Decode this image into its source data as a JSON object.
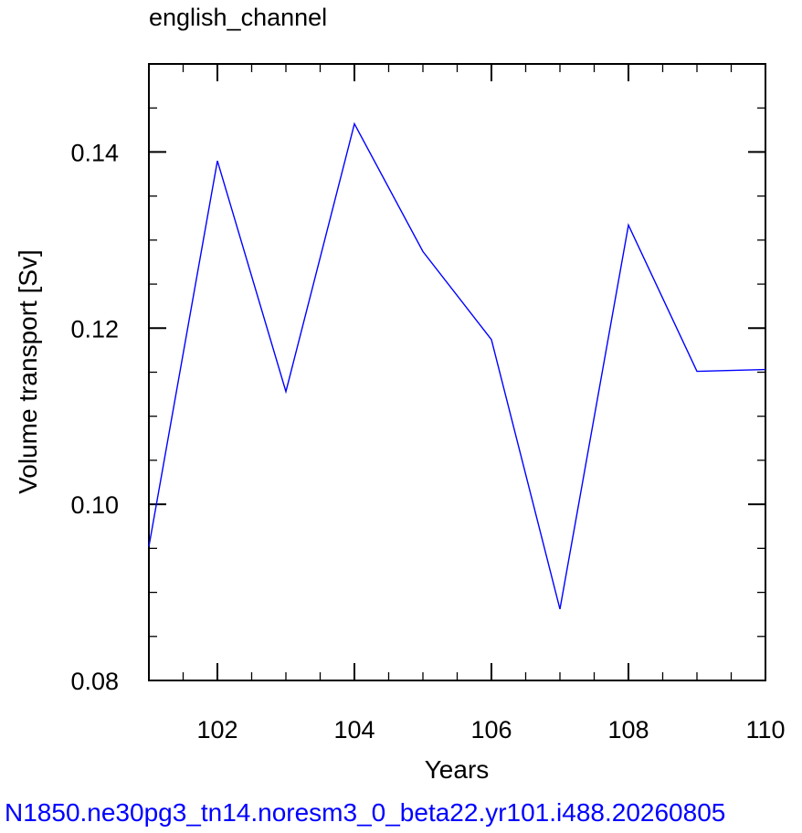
{
  "chart_data": {
    "type": "line",
    "title": "english_channel",
    "xlabel": "Years",
    "ylabel": "Volume transport [Sv]",
    "xlim": [
      101,
      110
    ],
    "ylim": [
      0.08,
      0.15
    ],
    "x_ticks": [
      102,
      104,
      106,
      108,
      110
    ],
    "x_tick_labels": [
      "102",
      "104",
      "106",
      "108",
      "110"
    ],
    "y_ticks": [
      0.08,
      0.1,
      0.12,
      0.14
    ],
    "y_tick_labels": [
      "0.08",
      "0.10",
      "0.12",
      "0.14"
    ],
    "grid": false,
    "series": [
      {
        "color": "#0000ff",
        "x": [
          101,
          102,
          103,
          104,
          105,
          106,
          107,
          108,
          109,
          110
        ],
        "values": [
          0.0952,
          0.139,
          0.1128,
          0.1432,
          0.1287,
          0.1187,
          0.0881,
          0.1317,
          0.1151,
          0.1153
        ]
      }
    ],
    "footer": "N1850.ne30pg3_tn14.noresm3_0_beta22.yr101.i488.20260805",
    "footer_color": "#0000ff"
  }
}
